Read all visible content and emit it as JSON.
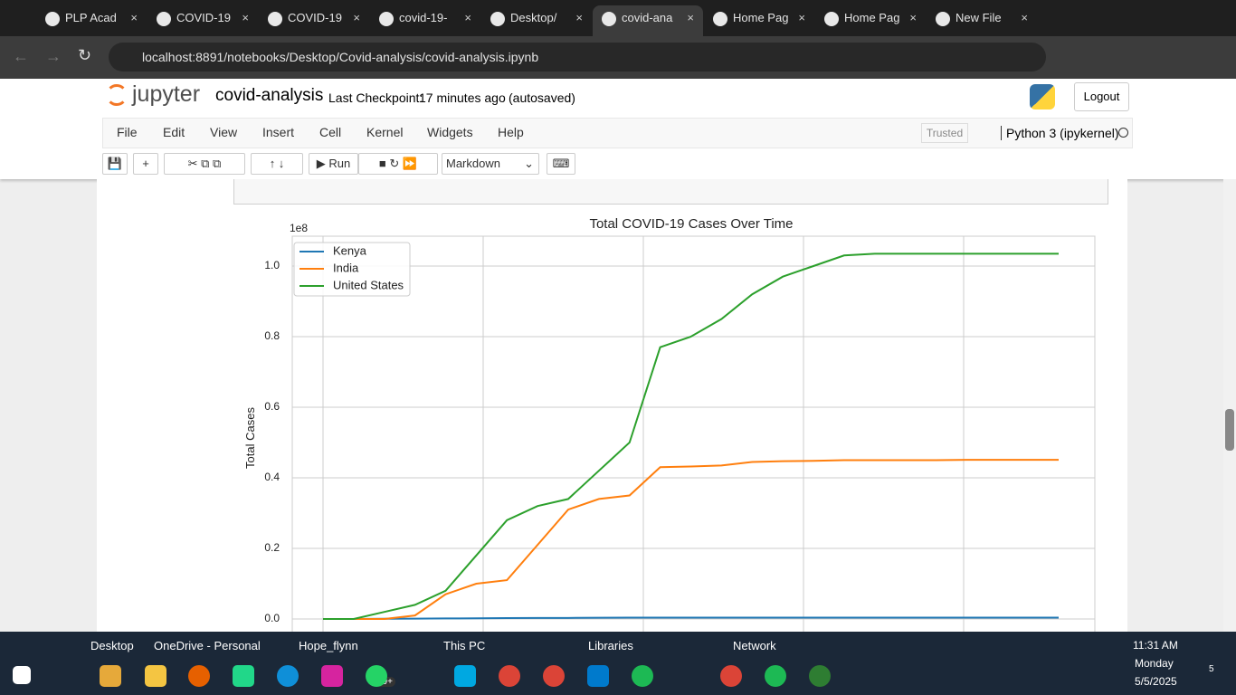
{
  "browser": {
    "tabs": [
      "PLP Acad",
      "COVID-19",
      "COVID-19",
      "covid-19-",
      "Desktop/",
      "covid-ana",
      "Home Pag",
      "Home Pag",
      "New File"
    ],
    "url": "localhost:8891/notebooks/Desktop/Covid-analysis/covid-analysis.ipynb"
  },
  "notebook": {
    "logo": "jupyter",
    "name": "covid-analysis",
    "checkpoint_label": "Last Checkpoint:",
    "checkpoint_time": "17 minutes ago",
    "autosave": "(autosaved)",
    "logout": "Logout",
    "menu": [
      "File",
      "Edit",
      "View",
      "Insert",
      "Cell",
      "Kernel",
      "Widgets",
      "Help"
    ],
    "trusted": "Trusted",
    "kernel": "Python 3 (ipykernel)",
    "run": "Run",
    "cell_type": "Markdown"
  },
  "chart_data": {
    "type": "line",
    "title": "Total COVID-19 Cases Over Time",
    "y_label": "Total Cases",
    "y_offset": "1e8",
    "categories": [
      null,
      null,
      null,
      null,
      null,
      null,
      null,
      null,
      null,
      null,
      null,
      null,
      null,
      null,
      null,
      null,
      null,
      null,
      null,
      null,
      null,
      null,
      null,
      null,
      null
    ],
    "series": [
      {
        "name": "Kenya",
        "color": "#1f77b4",
        "values": [
          0,
          0,
          0.0005,
          0.001,
          0.0015,
          0.002,
          0.0025,
          0.003,
          0.003,
          0.0035,
          0.004,
          0.004,
          0.004,
          0.004,
          0.004,
          0.004,
          0.004,
          0.004,
          0.004,
          0.004,
          0.004,
          0.004,
          0.004,
          0.004,
          0.004
        ]
      },
      {
        "name": "India",
        "color": "#ff7f0e",
        "values": [
          0,
          0,
          0,
          0.01,
          0.07,
          0.1,
          0.11,
          0.21,
          0.31,
          0.34,
          0.35,
          0.43,
          0.432,
          0.435,
          0.445,
          0.447,
          0.448,
          0.45,
          0.45,
          0.45,
          0.45,
          0.451,
          0.451,
          0.451,
          0.451
        ]
      },
      {
        "name": "United States",
        "color": "#2ca02c",
        "values": [
          0,
          0,
          0.02,
          0.04,
          0.08,
          0.18,
          0.28,
          0.32,
          0.34,
          0.42,
          0.5,
          0.77,
          0.8,
          0.85,
          0.92,
          0.97,
          1.0,
          1.03,
          1.035,
          1.035,
          1.035,
          1.035,
          1.035,
          1.035,
          1.035
        ]
      }
    ],
    "ylim": [
      -0.05,
      1.085
    ],
    "yticks": [
      {
        "value": 0,
        "label": "0.0"
      },
      {
        "value": 0.2,
        "label": "0.2"
      },
      {
        "value": 0.4,
        "label": "0.4"
      },
      {
        "value": 0.6,
        "label": "0.6"
      },
      {
        "value": 0.8,
        "label": "0.8"
      },
      {
        "value": 1.0,
        "label": "1.0"
      }
    ],
    "grid": true,
    "legend": "upper left"
  },
  "taskbar": {
    "desktop": "Desktop",
    "onedrive": "OneDrive - Personal",
    "user": "Hope_flynn",
    "thispc": "This PC",
    "libraries": "Libraries",
    "network": "Network",
    "badge": "99+",
    "time": "11:31 AM",
    "day": "Monday",
    "date": "5/5/2025",
    "notifications": "5"
  }
}
